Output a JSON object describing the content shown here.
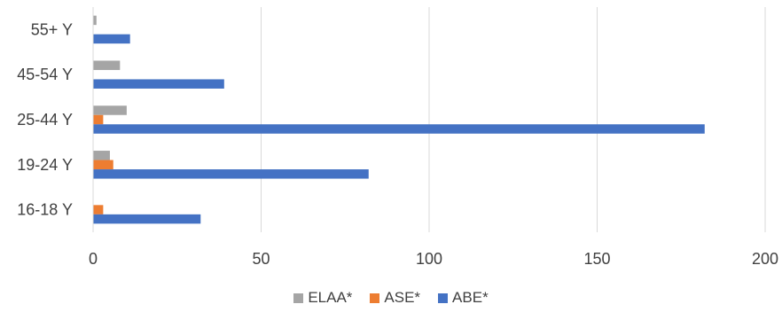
{
  "chart_data": {
    "type": "bar",
    "orientation": "horizontal",
    "categories": [
      "16-18 Y",
      "19-24 Y",
      "25-44 Y",
      "45-54 Y",
      "55+ Y"
    ],
    "series": [
      {
        "name": "ELAA*",
        "color": "#a5a5a5",
        "values": [
          0,
          5,
          10,
          8,
          1
        ]
      },
      {
        "name": "ASE*",
        "color": "#ed7d31",
        "values": [
          3,
          6,
          3,
          0,
          0
        ]
      },
      {
        "name": "ABE*",
        "color": "#4472c4",
        "values": [
          32,
          82,
          182,
          39,
          11
        ]
      }
    ],
    "xlim": [
      0,
      200
    ],
    "xticks": [
      0,
      50,
      100,
      150,
      200
    ],
    "grid": "vertical",
    "legend_position": "bottom"
  }
}
